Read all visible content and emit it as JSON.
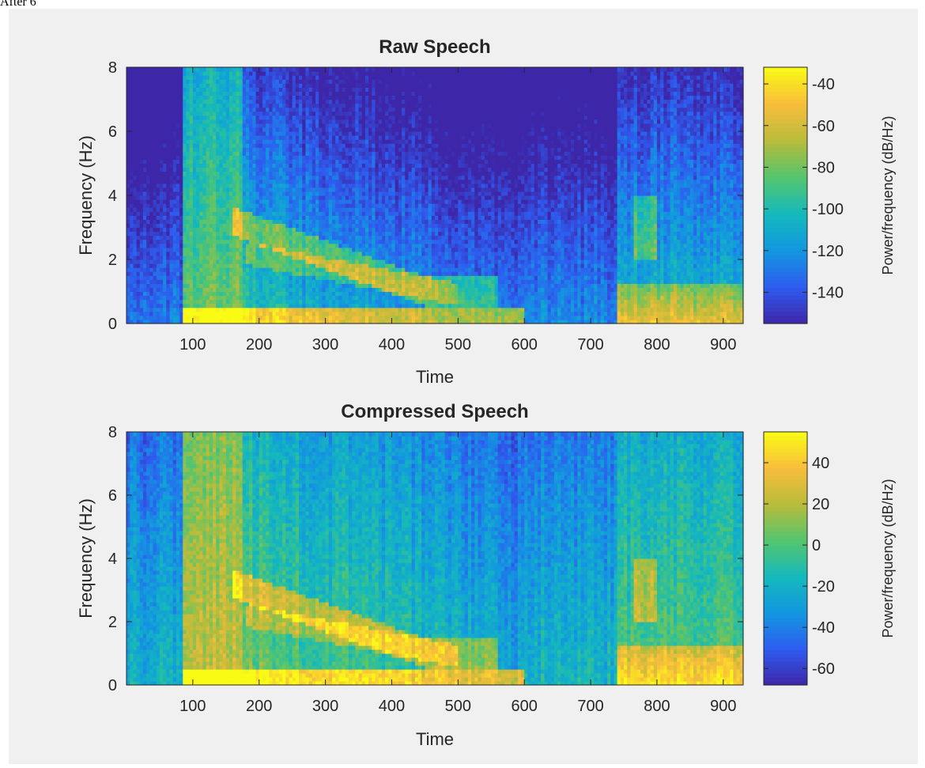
{
  "caption": "After 6",
  "chart_data": [
    {
      "type": "heatmap",
      "title": "Raw Speech",
      "xlabel": "Time",
      "ylabel": "Frequency (Hz)",
      "xlim": [
        0,
        930
      ],
      "ylim": [
        0,
        8
      ],
      "xticks": [
        100,
        200,
        300,
        400,
        500,
        600,
        700,
        800,
        900
      ],
      "yticks": [
        0,
        2,
        4,
        6,
        8
      ],
      "colorbar": {
        "label": "Power/frequency (dB/Hz)",
        "range": [
          -155,
          -32
        ],
        "ticks": [
          -40,
          -60,
          -80,
          -100,
          -120,
          -140
        ]
      },
      "colormap": [
        "#3e26a8",
        "#2e5cf0",
        "#1397e0",
        "#14b9bc",
        "#55c56e",
        "#b8bc3a",
        "#f9bd3c",
        "#f9fb15"
      ],
      "grid": false
    },
    {
      "type": "heatmap",
      "title": "Compressed Speech",
      "xlabel": "Time",
      "ylabel": "Frequency (Hz)",
      "xlim": [
        0,
        930
      ],
      "ylim": [
        0,
        8
      ],
      "xticks": [
        100,
        200,
        300,
        400,
        500,
        600,
        700,
        800,
        900
      ],
      "yticks": [
        0,
        2,
        4,
        6,
        8
      ],
      "colorbar": {
        "label": "Power/frequency (dB/Hz)",
        "range": [
          -68,
          55
        ],
        "ticks": [
          40,
          20,
          0,
          -20,
          -40,
          -60
        ]
      },
      "colormap": [
        "#3e26a8",
        "#2e5cf0",
        "#1397e0",
        "#14b9bc",
        "#55c56e",
        "#b8bc3a",
        "#f9bd3c",
        "#f9fb15"
      ],
      "grid": false
    }
  ]
}
